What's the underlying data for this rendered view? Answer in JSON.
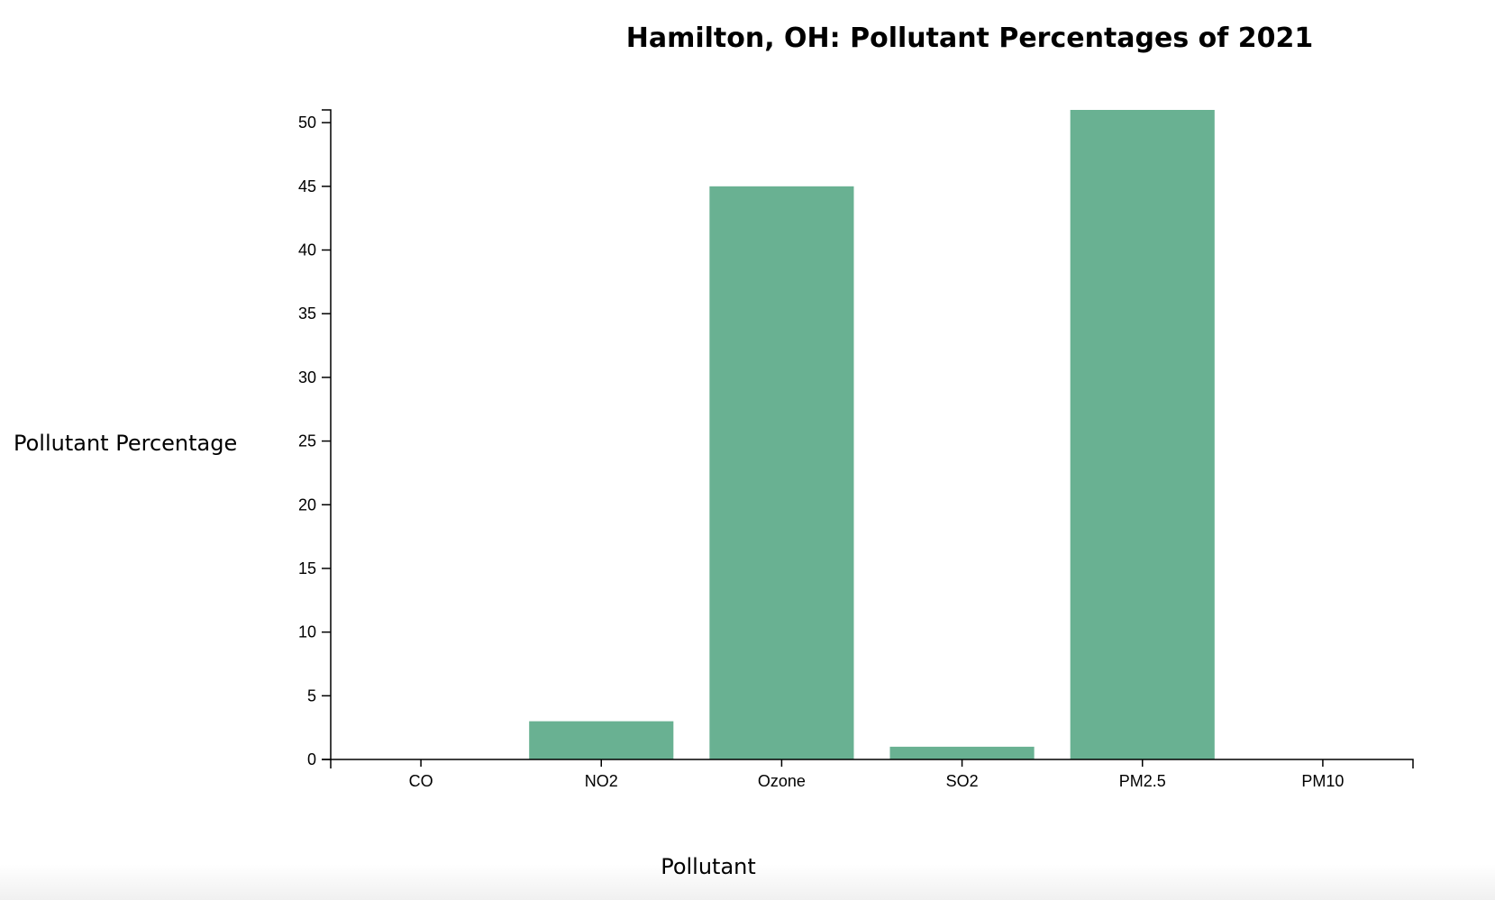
{
  "chart_data": {
    "type": "bar",
    "title": "Hamilton, OH: Pollutant Percentages of 2021",
    "xlabel": "Pollutant",
    "ylabel": "Pollutant Percentage",
    "categories": [
      "CO",
      "NO2",
      "Ozone",
      "SO2",
      "PM2.5",
      "PM10"
    ],
    "values": [
      0,
      3,
      45,
      1,
      51,
      0
    ],
    "ylim": [
      0,
      51
    ],
    "yticks": [
      0,
      5,
      10,
      15,
      20,
      25,
      30,
      35,
      40,
      45,
      50
    ],
    "bar_color": "#69b192",
    "grid": false,
    "legend": "none"
  }
}
